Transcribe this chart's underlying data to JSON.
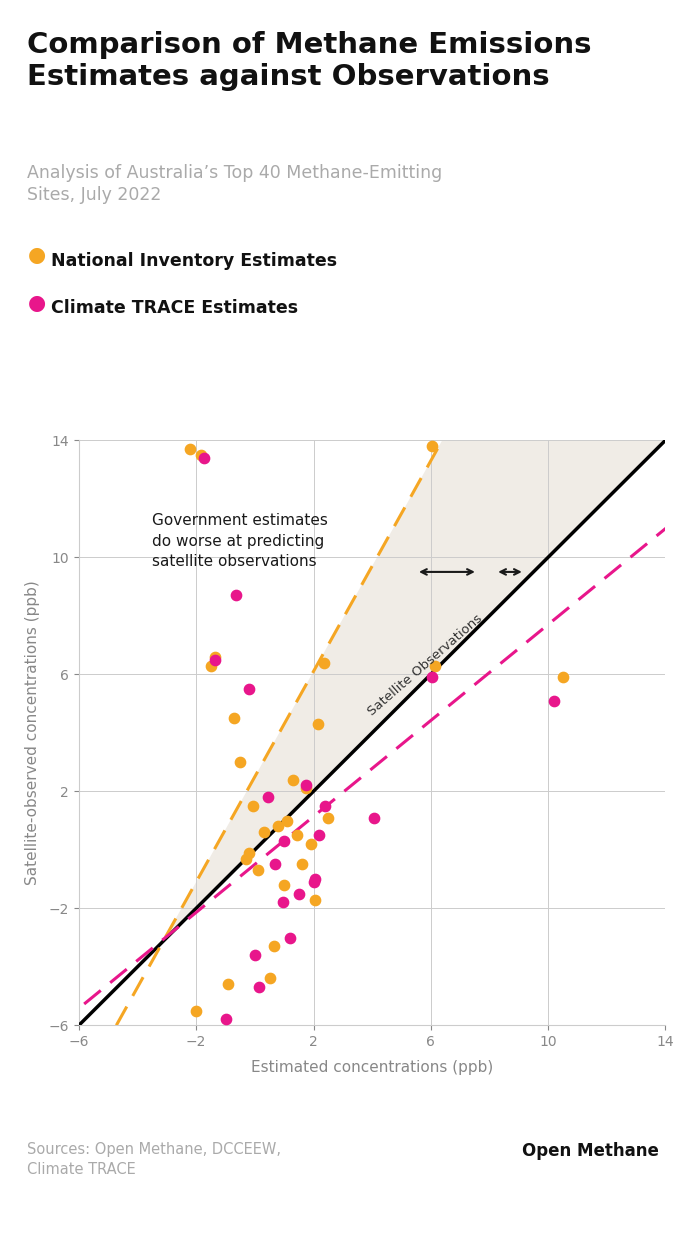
{
  "title": "Comparison of Methane Emissions\nEstimates against Observations",
  "subtitle": "Analysis of Australia’s Top 40 Methane-Emitting\nSites, July 2022",
  "xlabel": "Estimated concentrations (ppb)",
  "ylabel": "Satellite-observed concentrations (ppb)",
  "xlim": [
    -6,
    14
  ],
  "ylim": [
    -6,
    14
  ],
  "xticks": [
    -6,
    -2,
    2,
    6,
    10,
    14
  ],
  "yticks": [
    -6,
    -2,
    2,
    6,
    10,
    14
  ],
  "background_color": "#ffffff",
  "shaded_region_color": "#f0ece6",
  "legend1_label": "National Inventory Estimates",
  "legend2_label": "Climate TRACE Estimates",
  "orange_color": "#F5A623",
  "pink_color": "#E8168B",
  "annotation_text": "Government estimates\ndo worse at predicting\nsatellite observations",
  "sat_obs_label": "Satellite Observations",
  "source_text": "Sources: Open Methane, DCCEEW,\nClimate TRACE",
  "brand_text": "Open Methane",
  "orange_x": [
    -2.2,
    -1.85,
    -2.0,
    -1.5,
    -1.35,
    -0.9,
    -0.7,
    -0.5,
    -0.3,
    -0.2,
    -0.05,
    0.1,
    0.3,
    0.5,
    0.65,
    0.8,
    1.0,
    1.1,
    1.3,
    1.45,
    1.6,
    1.75,
    1.9,
    2.05,
    2.15,
    2.35,
    2.5,
    6.05,
    6.15,
    10.5
  ],
  "orange_y": [
    13.7,
    13.5,
    -5.5,
    6.3,
    6.6,
    -4.6,
    4.5,
    3.0,
    -0.3,
    -0.1,
    1.5,
    -0.7,
    0.6,
    -4.4,
    -3.3,
    0.8,
    -1.2,
    1.0,
    2.4,
    0.5,
    -0.5,
    2.1,
    0.2,
    -1.7,
    4.3,
    6.4,
    1.1,
    13.8,
    6.3,
    5.9
  ],
  "pink_x": [
    -1.75,
    -1.35,
    -0.65,
    -0.2,
    0.15,
    0.45,
    0.7,
    0.95,
    1.2,
    1.5,
    1.75,
    2.05,
    2.2,
    2.4,
    4.05,
    6.05,
    10.2,
    -1.0,
    0.0,
    1.0,
    2.0
  ],
  "pink_y": [
    13.4,
    6.5,
    8.7,
    5.5,
    -4.7,
    1.8,
    -0.5,
    -1.8,
    -3.0,
    -1.5,
    2.2,
    -1.0,
    0.5,
    1.5,
    1.1,
    5.9,
    5.1,
    -5.8,
    -3.6,
    0.3,
    -1.1
  ],
  "orange_reg_slope": 1.8,
  "orange_reg_intercept": 2.5,
  "pink_reg_slope": 0.82,
  "pink_reg_intercept": -0.5
}
